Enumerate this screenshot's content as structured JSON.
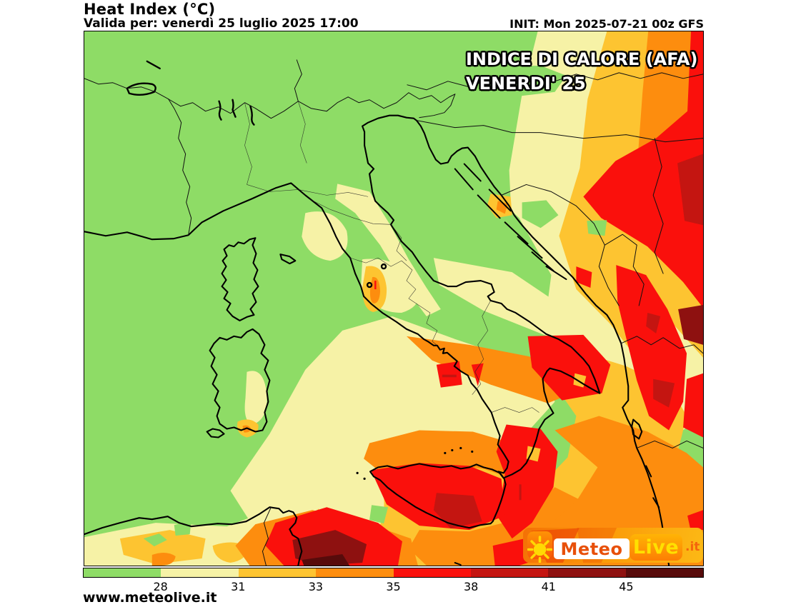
{
  "header": {
    "title": "Heat Index (°C)",
    "valid_for": "Valida per: venerdì 25 luglio 2025 17:00",
    "init": "INIT: Mon 2025-07-21 00z GFS"
  },
  "map_overlay": {
    "line1": "INDICE DI CALORE (AFA)",
    "line2": "VENERDI' 25"
  },
  "palette": {
    "green": "#8edc66",
    "pale_yellow": "#f6f2a6",
    "gold": "#fdc431",
    "orange": "#fd8d0e",
    "red": "#fa100c",
    "red_dark": "#c41511",
    "maroon": "#8e1110",
    "dark_maroon": "#570b0b"
  },
  "colorbar": {
    "ticks": [
      "28",
      "31",
      "33",
      "35",
      "38",
      "41",
      "45"
    ],
    "segments": [
      {
        "range": "< 28",
        "color_key": "green"
      },
      {
        "range": "28-31",
        "color_key": "pale_yellow"
      },
      {
        "range": "31-33",
        "color_key": "gold"
      },
      {
        "range": "33-35",
        "color_key": "orange"
      },
      {
        "range": "35-38",
        "color_key": "red"
      },
      {
        "range": "38-41",
        "color_key": "red_dark"
      },
      {
        "range": "41-45",
        "color_key": "maroon"
      },
      {
        "range": "> 45",
        "color_key": "dark_maroon"
      }
    ]
  },
  "logo": {
    "word1": "Meteo",
    "word2": "Live",
    "tld": ".it"
  },
  "footer": {
    "website": "www.meteolive.it"
  }
}
